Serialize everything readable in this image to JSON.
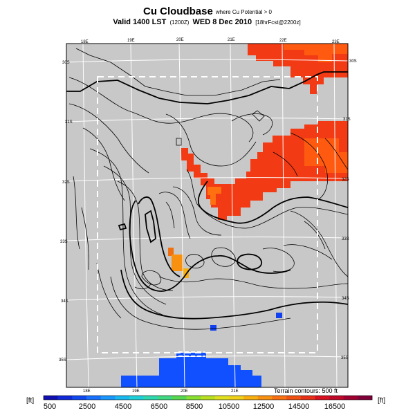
{
  "title": {
    "main": "Cu Cloudbase",
    "qualifier": "where Cu Potential > 0",
    "valid_prefix": "Valid",
    "time": "1400 LST",
    "time_utc": "(1200Z)",
    "date": "WED 8 Dec 2010",
    "run": "[18hrFcst@2200z]"
  },
  "map": {
    "background_color": "#c8c8c8",
    "grid_color": "#ffffff",
    "lon_labels_top": [
      "18E",
      "19E",
      "20E",
      "21E",
      "22E",
      "23E"
    ],
    "lon_labels_bottom": [
      "18E",
      "19E",
      "20E",
      "21E"
    ],
    "lat_labels_left": [
      "30S",
      "31S",
      "32S",
      "33S",
      "34S",
      "35S"
    ],
    "lat_labels_right": [
      "30S",
      "31S",
      "32S",
      "33S",
      "34S",
      "35S"
    ]
  },
  "footer": {
    "terrain_note": "Terrain contours: 500 ft",
    "unit_left": "[ft]",
    "unit_right": "[ft]"
  },
  "colorbar": {
    "labels": [
      "500",
      "2500",
      "4500",
      "6500",
      "8500",
      "10500",
      "12500",
      "14500",
      "16500"
    ],
    "colors": [
      "#1010b0",
      "#1028d8",
      "#1048f0",
      "#1870ff",
      "#1898ff",
      "#18b8f0",
      "#20d0d8",
      "#30d8b0",
      "#40d880",
      "#58d850",
      "#88e030",
      "#b8e020",
      "#e0e020",
      "#f0d018",
      "#f8b010",
      "#f89010",
      "#f87010",
      "#f05010",
      "#e83018",
      "#d81020",
      "#c00828",
      "#a00030",
      "#800038"
    ]
  }
}
